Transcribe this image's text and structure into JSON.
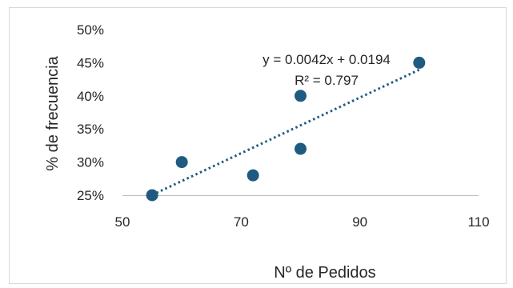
{
  "chart_data": {
    "type": "scatter",
    "xlabel": "Nº de Pedidos",
    "ylabel": "% de frecuencia",
    "xlim": [
      50,
      110
    ],
    "ylim": [
      0.25,
      0.5
    ],
    "x_ticks": [
      50,
      70,
      90,
      110
    ],
    "x_tick_labels": [
      "50",
      "70",
      "90",
      "110"
    ],
    "y_ticks": [
      0.25,
      0.3,
      0.35,
      0.4,
      0.45,
      0.5
    ],
    "y_tick_labels": [
      "25%",
      "30%",
      "35%",
      "40%",
      "45%",
      "50%"
    ],
    "grid": false,
    "series": [
      {
        "points": [
          {
            "x": 55,
            "y": 0.25
          },
          {
            "x": 60,
            "y": 0.3
          },
          {
            "x": 72,
            "y": 0.28
          },
          {
            "x": 80,
            "y": 0.4
          },
          {
            "x": 80,
            "y": 0.32
          },
          {
            "x": 100,
            "y": 0.45
          }
        ],
        "color": "#1f5b80"
      }
    ],
    "trendline": {
      "type": "linear",
      "slope": 0.0042,
      "intercept": 0.0194,
      "x_range": [
        55,
        100
      ],
      "color": "#1f5b80",
      "equation_label": "y = 0.0042x + 0.0194",
      "r2_label": "R² = 0.797"
    }
  }
}
